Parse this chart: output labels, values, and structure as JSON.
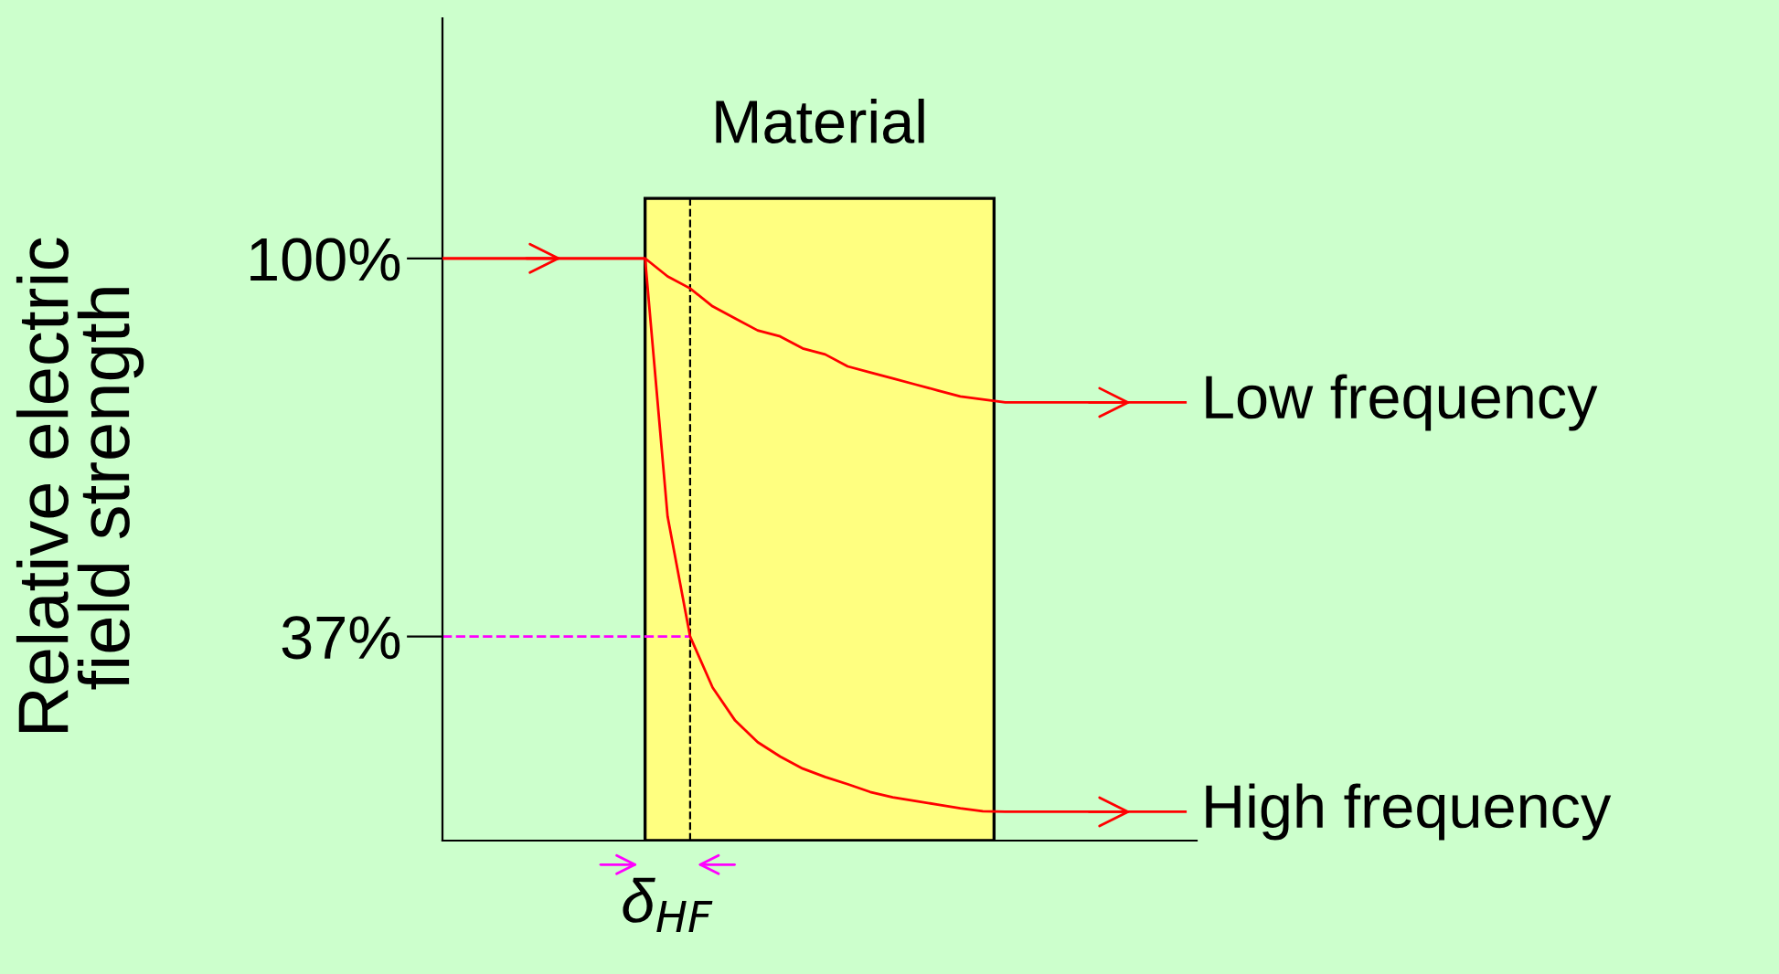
{
  "chart_data": {
    "type": "line",
    "title": "Material",
    "ylabel": "Relative electric\nfield strength",
    "categories": [
      null,
      null,
      null,
      null,
      null,
      null,
      null,
      null,
      null,
      null,
      null,
      null,
      null,
      null,
      null,
      null,
      null,
      null,
      null,
      null,
      null,
      null,
      null,
      null,
      null,
      null,
      null,
      null,
      null,
      null,
      null,
      null,
      null,
      null
    ],
    "series": [
      {
        "name": "Low frequency",
        "color": "#ff0000",
        "values": [
          100,
          100,
          100,
          100,
          100,
          100,
          100,
          100,
          100,
          100,
          97,
          95,
          92,
          90,
          88,
          87,
          85,
          84,
          82,
          81,
          80,
          79,
          78,
          77,
          76.5,
          76,
          76,
          76,
          76,
          76,
          76,
          76,
          76,
          76
        ]
      },
      {
        "name": "High frequency",
        "color": "#ff0000",
        "values": [
          100,
          100,
          100,
          100,
          100,
          100,
          100,
          100,
          100,
          100,
          57,
          37,
          28.5,
          23,
          19.4,
          17,
          15,
          13.6,
          12.4,
          11.1,
          10.2,
          9.6,
          9,
          8.4,
          7.9,
          7.8,
          7.8,
          7.8,
          7.8,
          7.8,
          7.8,
          7.8,
          7.8,
          7.8
        ]
      }
    ],
    "ylim": [
      3,
      140
    ],
    "yticks": [
      {
        "value": 37,
        "label": "37%"
      },
      {
        "value": 100,
        "label": "100%"
      }
    ],
    "ref_lines": [
      {
        "axis": "y",
        "value": 37,
        "color": "#ff00ff",
        "line_style": "dashed"
      }
    ],
    "annotations": [
      "δ$_{HF}$"
    ],
    "grid": false,
    "legend": "right",
    "marker": "none",
    "line_style": "solid"
  }
}
